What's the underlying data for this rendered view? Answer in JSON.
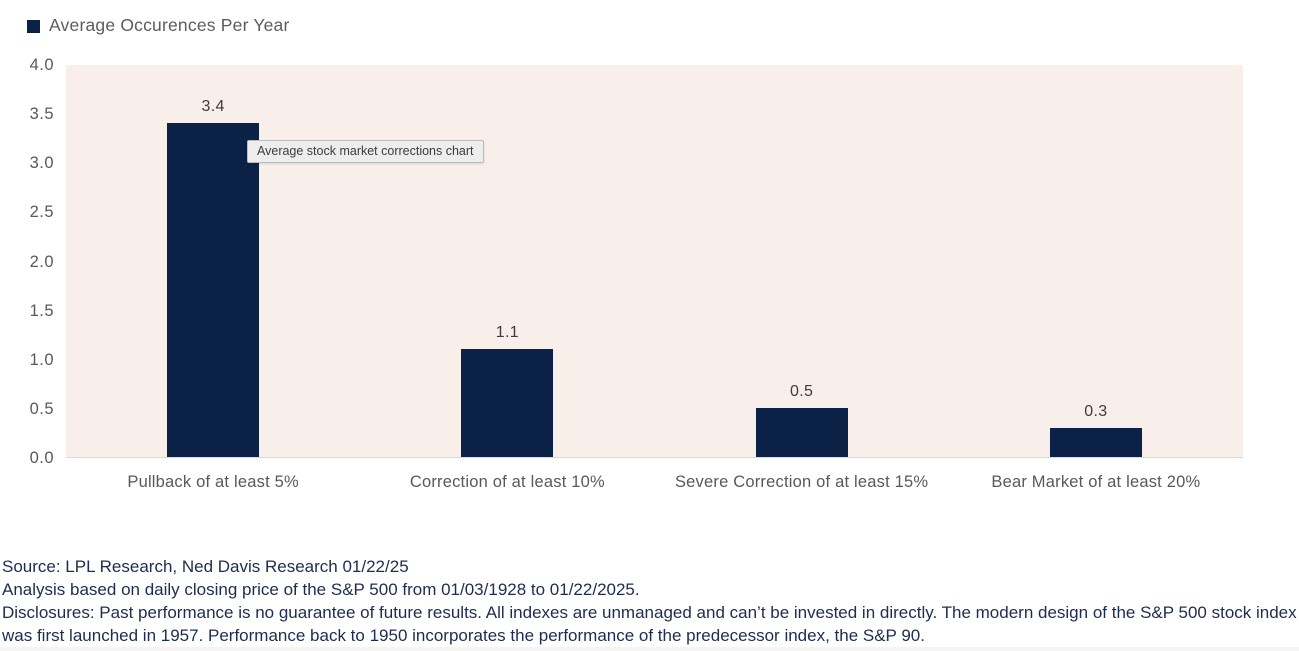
{
  "legend": {
    "label": "Average Occurences Per Year"
  },
  "tooltip": {
    "text": "Average stock market corrections chart"
  },
  "chart_data": {
    "type": "bar",
    "title": "Average Occurences Per Year",
    "categories": [
      "Pullback of at least 5%",
      "Correction of at least 10%",
      "Severe Correction of at least 15%",
      "Bear Market of at least 20%"
    ],
    "values": [
      3.4,
      1.1,
      0.5,
      0.3
    ],
    "value_labels": [
      "3.4",
      "1.1",
      "0.5",
      "0.3"
    ],
    "xlabel": "",
    "ylabel": "",
    "ylim": [
      0,
      4
    ],
    "y_tick_step": 0.5,
    "y_tick_labels": [
      "4.0",
      "3.5",
      "3.0",
      "2.5",
      "2.0",
      "1.5",
      "1.0",
      "0.5",
      "0.0"
    ],
    "grid": false,
    "legend_position": "top-left",
    "bar_color": "#0c2146",
    "plot_background": "#f8efeb"
  },
  "footnotes": {
    "source": "Source: LPL Research, Ned Davis Research 01/22/25",
    "analysis": "Analysis based on daily closing price of the S&P 500 from 01/03/1928 to 01/22/2025.",
    "disclosures": "Disclosures: Past performance is no guarantee of future results. All indexes are unmanaged and can’t be invested in directly. The modern design of the S&P 500 stock index was first launched in 1957. Performance back to 1950 incorporates the performance of the predecessor index, the S&P 90."
  }
}
